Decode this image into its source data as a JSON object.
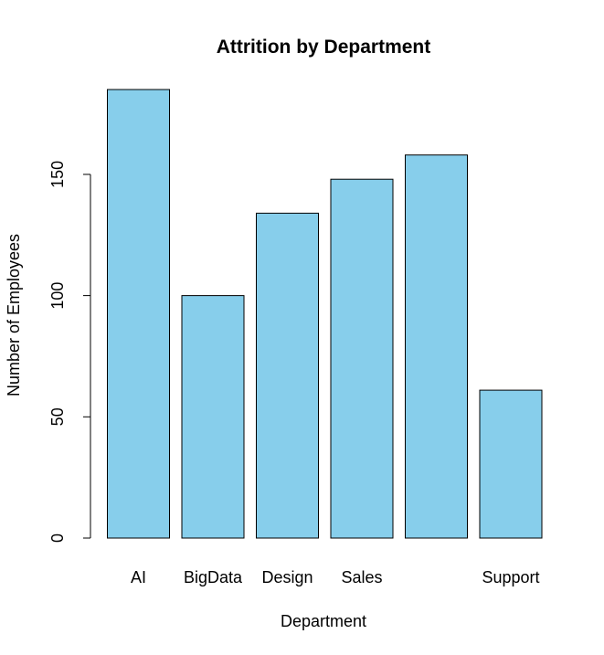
{
  "chart_data": {
    "type": "bar",
    "title": "Attrition by Department",
    "xlabel": "Department",
    "ylabel": "Number of Employees",
    "categories": [
      "AI",
      "BigData",
      "Design",
      "Sales",
      "",
      "Support"
    ],
    "values": [
      185,
      100,
      134,
      148,
      158,
      61
    ],
    "ylim": [
      0,
      185
    ],
    "yticks": [
      0,
      50,
      100,
      150
    ],
    "bar_color": "#87CEEB",
    "grid": false,
    "legend": "none"
  }
}
